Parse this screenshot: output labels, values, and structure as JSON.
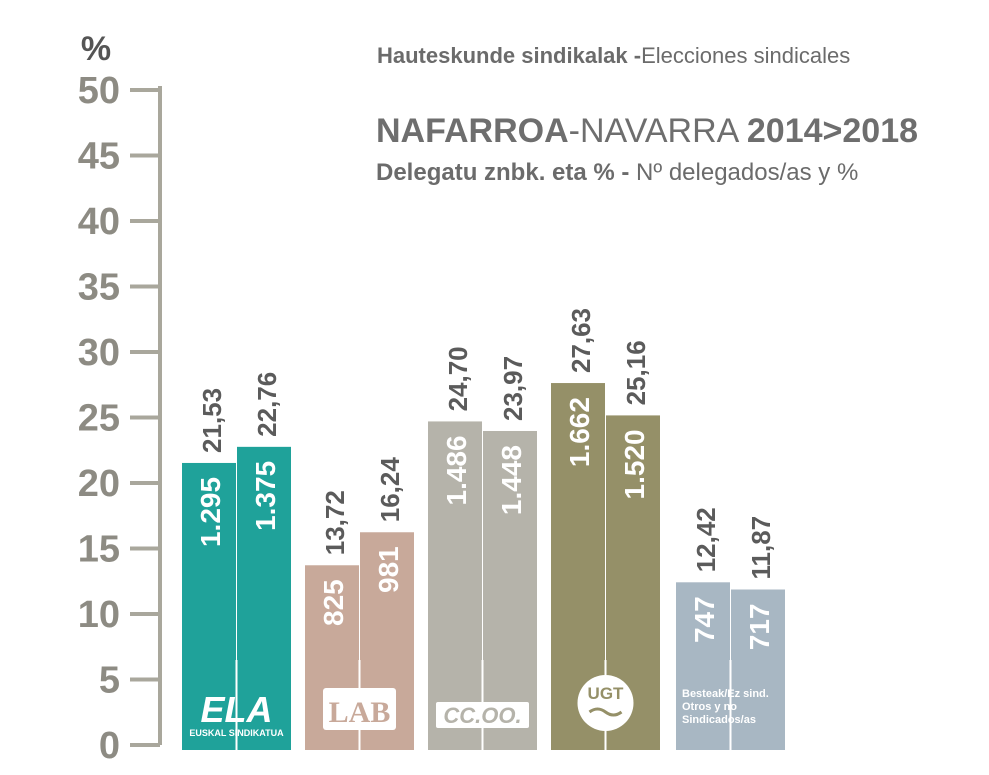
{
  "header": {
    "line1_bold": "Hauteskunde sindikalak -",
    "line1_regular": "Elecciones sindicales",
    "region_bold": "NAFARROA",
    "region_regular": "-NAVARRA ",
    "years": "2014>2018",
    "line3_bold": "Delegatu znbk. eta % -",
    "line3_regular": " Nº delegados/as y %"
  },
  "colors": {
    "axis": "#a9a79c",
    "tick_text": "#8d8b83",
    "value_text": "#5b5b5b",
    "ELA": "#1fa29a",
    "LAB": "#c8a99a",
    "CCOO": "#b5b3aa",
    "UGT": "#959068",
    "OTHERS": "#a8b7c3"
  },
  "chart_data": {
    "type": "bar",
    "title": "NAFARROA-NAVARRA 2014>2018",
    "subtitle": "Delegatu znbk. eta % - Nº delegados/as y %",
    "ylabel": "%",
    "xlabel": "",
    "ylim": [
      0,
      50
    ],
    "yticks": [
      0,
      5,
      10,
      15,
      20,
      25,
      30,
      35,
      40,
      45,
      50
    ],
    "grid": false,
    "categories": [
      "ELA",
      "LAB",
      "CCOO",
      "UGT",
      "Besteak/Ez sind. Otros y no Sindicados/as"
    ],
    "series": [
      {
        "name": "2014",
        "values": [
          21.53,
          13.72,
          24.7,
          27.63,
          12.42
        ],
        "value_labels": [
          "21,53",
          "13,72",
          "24,70",
          "27,63",
          "12,42"
        ],
        "delegates": [
          "1.295",
          "825",
          "1.486",
          "1.662",
          "747"
        ]
      },
      {
        "name": "2018",
        "values": [
          22.76,
          16.24,
          23.97,
          25.16,
          11.87
        ],
        "value_labels": [
          "22,76",
          "16,24",
          "23,97",
          "25,16",
          "11,87"
        ],
        "delegates": [
          "1.375",
          "981",
          "1.448",
          "1.520",
          "717"
        ]
      }
    ],
    "logos": {
      "ELA": {
        "main": "ELA",
        "sub": "EUSKAL SINDIKATUA"
      },
      "LAB": {
        "main": "LAB"
      },
      "CCOO": {
        "main": "CC.OO."
      },
      "UGT": {
        "main": "UGT"
      },
      "OTHERS": {
        "lines": [
          "Besteak/Ez sind.",
          "Otros y  no",
          "Sindicados/as"
        ]
      }
    }
  }
}
